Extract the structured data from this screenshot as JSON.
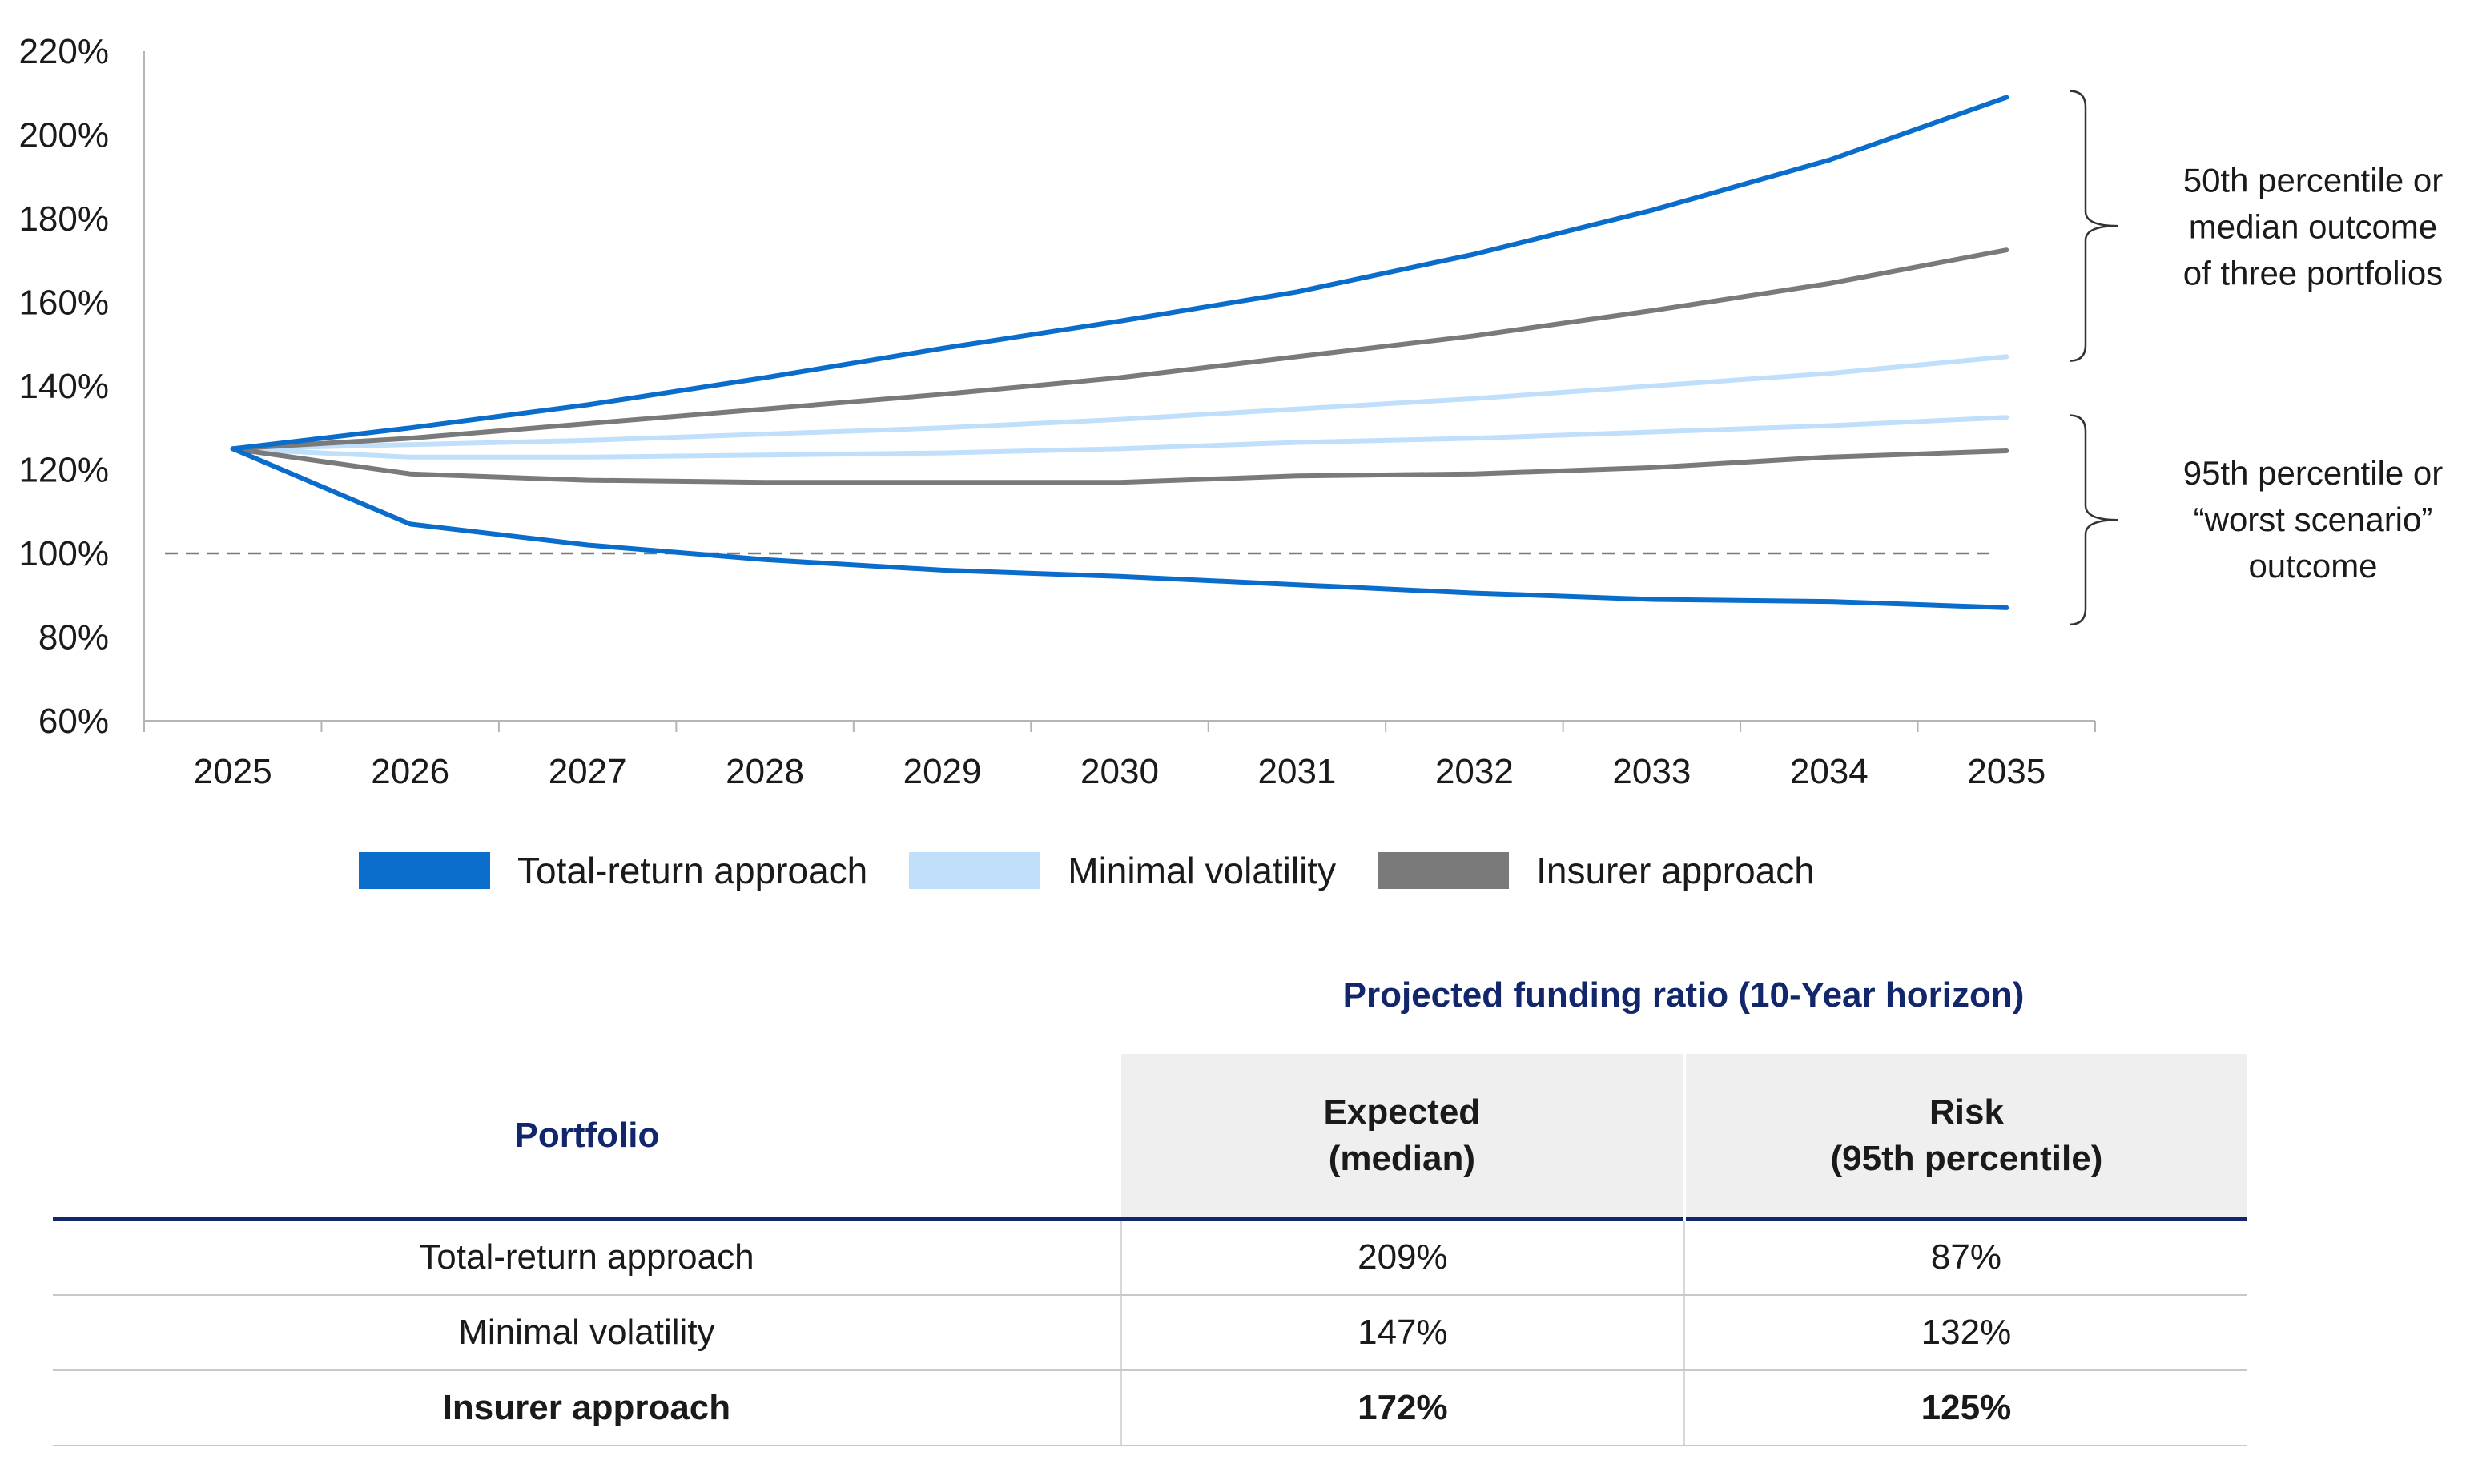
{
  "colors": {
    "total_return": "#0a6ccb",
    "minimal_volatility": "#bfdffb",
    "insurer": "#7a7a7a",
    "table_accent": "#12266b"
  },
  "chart_data": {
    "type": "line",
    "x": [
      "2025",
      "2026",
      "2027",
      "2028",
      "2029",
      "2030",
      "2031",
      "2032",
      "2033",
      "2034",
      "2035"
    ],
    "ylim": [
      60,
      220
    ],
    "yticks": [
      "60%",
      "80%",
      "100%",
      "120%",
      "140%",
      "160%",
      "180%",
      "200%",
      "220%"
    ],
    "reference_line": 100,
    "series": [
      {
        "name": "Total-return approach",
        "percentile": "50th",
        "color": "#0a6ccb",
        "values": [
          125,
          130,
          135.5,
          142,
          149,
          155.5,
          162.5,
          171.5,
          182,
          194,
          209
        ]
      },
      {
        "name": "Total-return approach",
        "percentile": "95th",
        "color": "#0a6ccb",
        "values": [
          125,
          107,
          102,
          98.5,
          96,
          94.5,
          92.5,
          90.5,
          89,
          88.5,
          87
        ]
      },
      {
        "name": "Minimal volatility",
        "percentile": "50th",
        "color": "#bfdffb",
        "values": [
          125,
          126,
          127,
          128.5,
          130,
          132,
          134.5,
          137,
          140,
          143,
          147
        ]
      },
      {
        "name": "Minimal volatility",
        "percentile": "95th",
        "color": "#bfdffb",
        "values": [
          125,
          123,
          123,
          123.5,
          124,
          125,
          126.5,
          127.5,
          129,
          130.5,
          132.5
        ]
      },
      {
        "name": "Insurer approach",
        "percentile": "50th",
        "color": "#7a7a7a",
        "values": [
          125,
          127.5,
          131,
          134.5,
          138,
          142,
          147,
          152,
          158,
          164.5,
          172.5
        ]
      },
      {
        "name": "Insurer approach",
        "percentile": "95th",
        "color": "#7a7a7a",
        "values": [
          125,
          119,
          117.5,
          117,
          117,
          117,
          118.5,
          119,
          120.5,
          123,
          124.5
        ]
      }
    ],
    "annotations": [
      {
        "lines": [
          "50th percentile or",
          "median outcome",
          "of three portfolios"
        ]
      },
      {
        "lines": [
          "95th percentile or",
          "“worst scenario”",
          "outcome"
        ]
      }
    ],
    "legend": [
      "Total-return approach",
      "Minimal volatility",
      "Insurer approach"
    ]
  },
  "table": {
    "caption": "Projected funding ratio  (10-Year horizon)",
    "header_portfolio": "Portfolio",
    "header_expected_1": "Expected",
    "header_expected_2": "(median)",
    "header_risk_1": "Risk",
    "header_risk_2": "(95th percentile)",
    "rows": [
      {
        "portfolio": "Total-return approach",
        "expected": "209%",
        "risk": "87%"
      },
      {
        "portfolio": "Minimal volatility",
        "expected": "147%",
        "risk": "132%"
      },
      {
        "portfolio": "Insurer approach",
        "expected": "172%",
        "risk": "125%"
      }
    ]
  }
}
